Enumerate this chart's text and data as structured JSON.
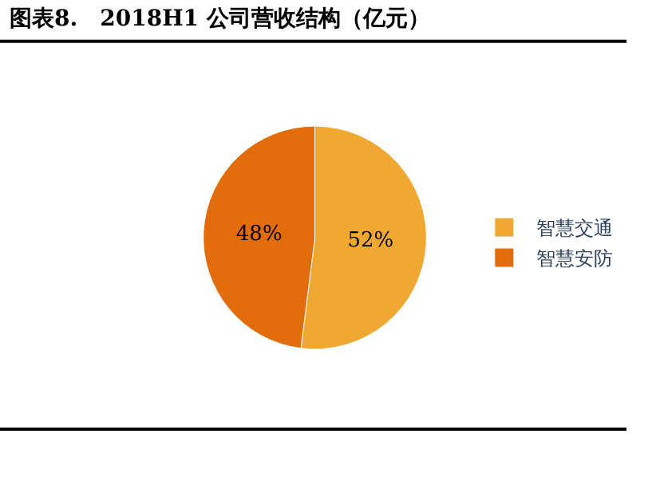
{
  "chart_data": {
    "type": "pie",
    "title": "图表8.　2018H1 公司营收结构（亿元）",
    "categories": [
      "智慧交通",
      "智慧安防"
    ],
    "values": [
      52,
      48
    ],
    "colors": [
      "#f0a830",
      "#e36c0a"
    ],
    "value_labels": [
      "52%",
      "48%"
    ],
    "legend": "right"
  }
}
